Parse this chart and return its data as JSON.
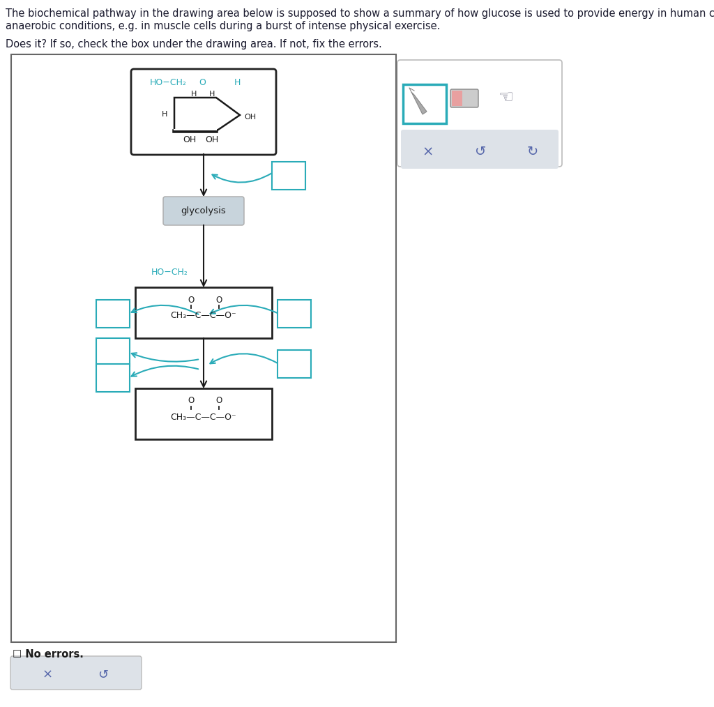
{
  "title_line1": "The biochemical pathway in the drawing area below is supposed to show a summary of how glucose is used to provide energy in human cells under",
  "title_line2": "anaerobic conditions, e.g. in muscle cells during a burst of intense physical exercise.",
  "title_line3": "Does it? If so, check the box under the drawing area. If not, fix the errors.",
  "bg_color": "#ffffff",
  "teal": "#2aabb8",
  "dark": "#1a1a1a",
  "gray_bg": "#c8d4dc",
  "toolbar_gray": "#dde2e8"
}
